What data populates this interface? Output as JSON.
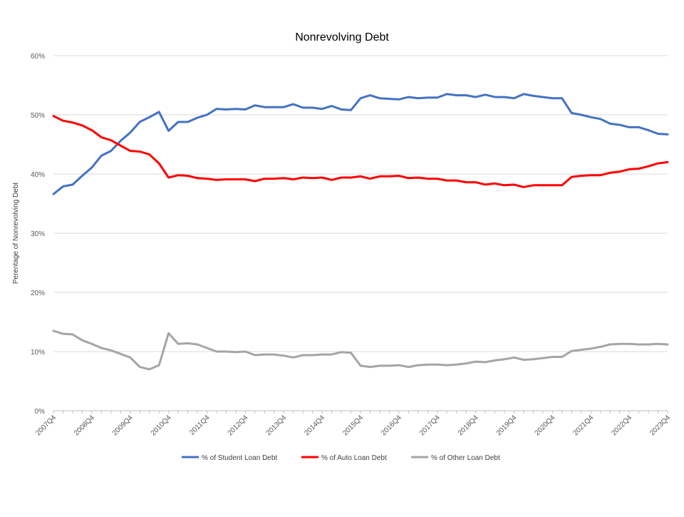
{
  "chart_data": {
    "type": "line",
    "title": "Nonrevolving Debt",
    "ylabel": "Perentage  of Nonrevolving Debt",
    "xlabel": "",
    "ylim": [
      0,
      60
    ],
    "y_ticks": [
      "0%",
      "10%",
      "20%",
      "30%",
      "40%",
      "50%",
      "60%"
    ],
    "y_tick_values": [
      0,
      10,
      20,
      30,
      40,
      50,
      60
    ],
    "x_labels": [
      "2007Q4",
      "2008Q4",
      "2009Q4",
      "2010Q4",
      "2011Q4",
      "2012Q4",
      "2013Q4",
      "2014Q4",
      "2015Q4",
      "2016Q4",
      "2017Q4",
      "2018Q4",
      "2019Q4",
      "2020Q4",
      "2021Q4",
      "2022Q4",
      "2023Q4"
    ],
    "x": [
      "2007Q4",
      "2008Q1",
      "2008Q2",
      "2008Q3",
      "2008Q4",
      "2009Q1",
      "2009Q2",
      "2009Q3",
      "2009Q4",
      "2010Q1",
      "2010Q2",
      "2010Q3",
      "2010Q4",
      "2011Q1",
      "2011Q2",
      "2011Q3",
      "2011Q4",
      "2012Q1",
      "2012Q2",
      "2012Q3",
      "2012Q4",
      "2013Q1",
      "2013Q2",
      "2013Q3",
      "2013Q4",
      "2014Q1",
      "2014Q2",
      "2014Q3",
      "2014Q4",
      "2015Q1",
      "2015Q2",
      "2015Q3",
      "2015Q4",
      "2016Q1",
      "2016Q2",
      "2016Q3",
      "2016Q4",
      "2017Q1",
      "2017Q2",
      "2017Q3",
      "2017Q4",
      "2018Q1",
      "2018Q2",
      "2018Q3",
      "2018Q4",
      "2019Q1",
      "2019Q2",
      "2019Q3",
      "2019Q4",
      "2020Q1",
      "2020Q2",
      "2020Q3",
      "2020Q4",
      "2021Q1",
      "2021Q2",
      "2021Q3",
      "2021Q4",
      "2022Q1",
      "2022Q2",
      "2022Q3",
      "2022Q4",
      "2023Q1",
      "2023Q2",
      "2023Q3",
      "2023Q4"
    ],
    "grid": "horizontal",
    "legend_position": "bottom",
    "series": [
      {
        "name": "% of Student Loan Debt",
        "color": "#4472C4",
        "values": [
          36.6,
          37.9,
          38.2,
          39.7,
          41.1,
          43.1,
          43.9,
          45.6,
          47.0,
          48.8,
          49.6,
          50.5,
          47.3,
          48.8,
          48.8,
          49.5,
          50.0,
          51.0,
          50.9,
          51.0,
          50.9,
          51.6,
          51.3,
          51.3,
          51.3,
          51.8,
          51.2,
          51.2,
          51.0,
          51.5,
          50.9,
          50.8,
          52.8,
          53.3,
          52.8,
          52.7,
          52.6,
          53.0,
          52.8,
          52.9,
          52.9,
          53.5,
          53.3,
          53.3,
          53.0,
          53.4,
          53.0,
          53.0,
          52.8,
          53.5,
          53.2,
          53.0,
          52.8,
          52.8,
          50.3,
          50.0,
          49.6,
          49.3,
          48.5,
          48.3,
          47.9,
          47.9,
          47.4,
          46.8,
          46.7
        ]
      },
      {
        "name": "% of Auto Loan Debt",
        "color": "#FF0000",
        "values": [
          49.8,
          49.0,
          48.7,
          48.2,
          47.4,
          46.2,
          45.7,
          44.8,
          43.9,
          43.8,
          43.3,
          41.8,
          39.4,
          39.8,
          39.7,
          39.3,
          39.2,
          39.0,
          39.1,
          39.1,
          39.1,
          38.8,
          39.2,
          39.2,
          39.3,
          39.1,
          39.4,
          39.3,
          39.4,
          39.0,
          39.4,
          39.4,
          39.6,
          39.2,
          39.6,
          39.6,
          39.7,
          39.3,
          39.4,
          39.2,
          39.2,
          38.9,
          38.9,
          38.6,
          38.6,
          38.2,
          38.4,
          38.1,
          38.2,
          37.8,
          38.1,
          38.1,
          38.1,
          38.1,
          39.5,
          39.7,
          39.8,
          39.8,
          40.2,
          40.4,
          40.8,
          40.9,
          41.3,
          41.8,
          42.0
        ]
      },
      {
        "name": "% of Other Loan Debt",
        "color": "#A5A5A5",
        "values": [
          13.5,
          13.0,
          12.9,
          11.9,
          11.3,
          10.6,
          10.2,
          9.6,
          9.0,
          7.4,
          7.0,
          7.7,
          13.1,
          11.3,
          11.4,
          11.2,
          10.6,
          10.0,
          10.0,
          9.9,
          10.0,
          9.4,
          9.5,
          9.5,
          9.3,
          9.0,
          9.4,
          9.4,
          9.5,
          9.5,
          9.9,
          9.8,
          7.6,
          7.4,
          7.6,
          7.6,
          7.7,
          7.4,
          7.7,
          7.8,
          7.8,
          7.7,
          7.8,
          8.0,
          8.3,
          8.2,
          8.5,
          8.7,
          9.0,
          8.6,
          8.7,
          8.9,
          9.1,
          9.1,
          10.1,
          10.3,
          10.5,
          10.8,
          11.2,
          11.3,
          11.3,
          11.2,
          11.2,
          11.3,
          11.2
        ]
      }
    ]
  }
}
